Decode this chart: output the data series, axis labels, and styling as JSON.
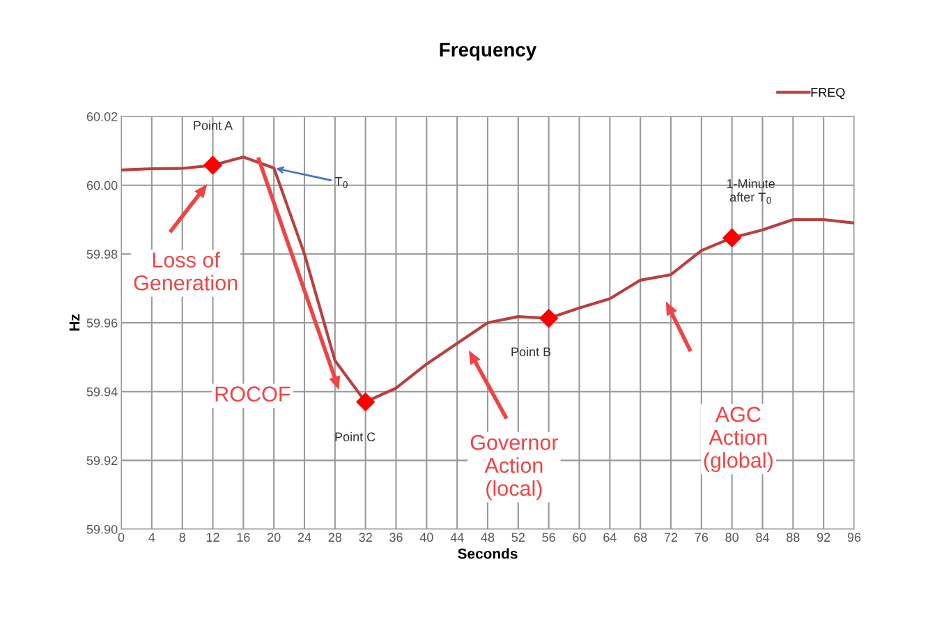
{
  "chart_data": {
    "type": "line",
    "title": "Frequency",
    "xlabel": "Seconds",
    "ylabel": "Hz",
    "x": [
      0,
      4,
      8,
      12,
      16,
      20,
      24,
      28,
      32,
      36,
      40,
      44,
      48,
      52,
      56,
      60,
      64,
      68,
      72,
      76,
      80,
      84,
      88,
      92,
      96
    ],
    "series": [
      {
        "name": "FREQ",
        "color": "#b8403e",
        "values": [
          60.0044,
          60.0048,
          60.0049,
          60.0058,
          60.0082,
          60.005,
          59.98,
          59.949,
          59.937,
          59.941,
          59.948,
          59.954,
          59.96,
          59.9618,
          59.9613,
          59.9643,
          59.967,
          59.9724,
          59.974,
          59.981,
          59.9847,
          59.987,
          59.99,
          59.99,
          59.989
        ]
      },
      {
        "type": "scatter",
        "color": "#ff0000",
        "marker": "diamond",
        "x": [
          12,
          32,
          56,
          80
        ],
        "values": [
          60.0058,
          59.937,
          59.9613,
          59.9847
        ]
      }
    ],
    "xlim": [
      0,
      96
    ],
    "xticks": [
      0,
      4,
      8,
      12,
      16,
      20,
      24,
      28,
      32,
      36,
      40,
      44,
      48,
      52,
      56,
      60,
      64,
      68,
      72,
      76,
      80,
      84,
      88,
      92,
      96
    ],
    "ylim": [
      59.9,
      60.02
    ],
    "yticks": [
      {
        "value": 59.9,
        "label": "59.90"
      },
      {
        "value": 59.92,
        "label": "59.92"
      },
      {
        "value": 59.94,
        "label": "59.94"
      },
      {
        "value": 59.96,
        "label": "59.96"
      },
      {
        "value": 59.98,
        "label": "59.98"
      },
      {
        "value": 60.0,
        "label": "60.00"
      },
      {
        "value": 60.02,
        "label": "60.02"
      }
    ],
    "grid": true,
    "legend": "top right",
    "annotations": [
      {
        "text": "Point A",
        "x": 12,
        "y": 60.0058
      },
      "Point C",
      "Point B",
      "1-Minute\nafter T$_{0}$",
      {
        "text": "T$_{0}$",
        "x": 20,
        "y": 60.005
      },
      "Loss of\nGeneration",
      "ROCOF",
      "Governor\nAction\n(local)",
      "AGC\nAction\n(global)"
    ]
  }
}
